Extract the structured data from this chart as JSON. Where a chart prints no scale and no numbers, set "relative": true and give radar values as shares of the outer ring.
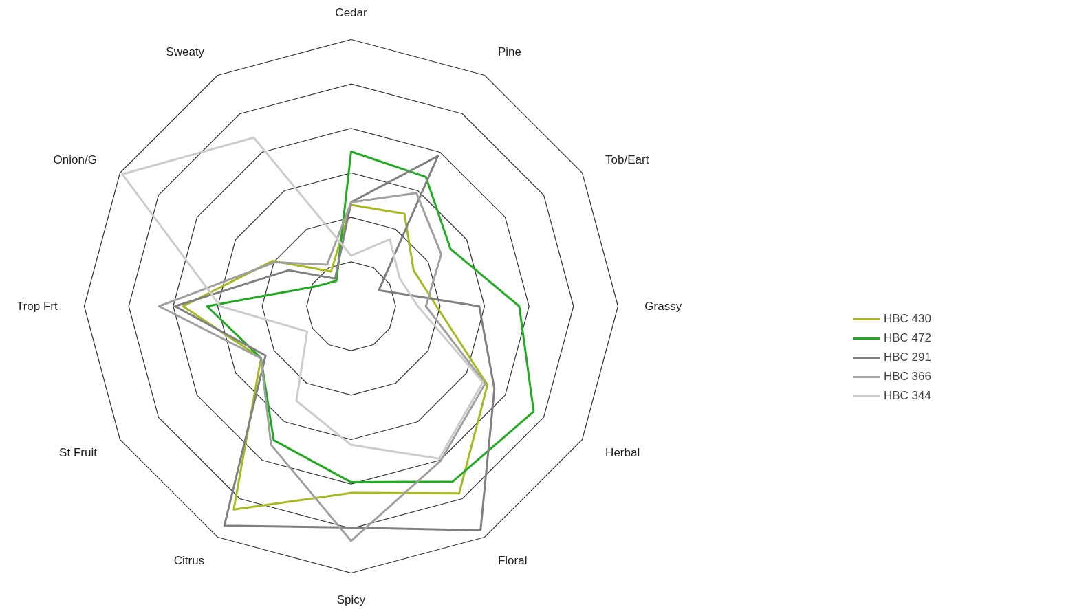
{
  "chart_data": {
    "type": "radar",
    "relative": true,
    "grid": true,
    "legend": "right",
    "line_style": "solid",
    "marker": "none",
    "categories": [
      "Cedar",
      "Pine",
      "Tob/Eart",
      "Grassy",
      "Herbal",
      "Floral",
      "Spicy",
      "Citrus",
      "St Fruit",
      "Trop Frt",
      "Onion/G",
      "Sweaty"
    ],
    "series": [
      {
        "name": "HBC 430",
        "color": "#a8b820",
        "values": [
          0.38,
          0.4,
          0.27,
          0.32,
          0.59,
          0.81,
          0.7,
          0.88,
          0.39,
          0.63,
          0.34,
          0.15
        ]
      },
      {
        "name": "HBC 472",
        "color": "#22aa22",
        "values": [
          0.58,
          0.56,
          0.43,
          0.63,
          0.79,
          0.76,
          0.66,
          0.58,
          0.39,
          0.54,
          0.15,
          0.11
        ]
      },
      {
        "name": "HBC 291",
        "color": "#808080",
        "values": [
          0.39,
          0.65,
          0.12,
          0.48,
          0.62,
          0.97,
          0.83,
          0.95,
          0.37,
          0.66,
          0.27,
          0.12
        ]
      },
      {
        "name": "HBC 366",
        "color": "#a0a0a0",
        "values": [
          0.39,
          0.49,
          0.39,
          0.28,
          0.58,
          0.67,
          0.88,
          0.6,
          0.39,
          0.72,
          0.33,
          0.18
        ]
      },
      {
        "name": "HBC 344",
        "color": "#cccccc",
        "values": [
          0.19,
          0.29,
          0.21,
          0.25,
          0.57,
          0.66,
          0.52,
          0.41,
          0.19,
          0.49,
          0.99,
          0.73
        ]
      }
    ]
  }
}
